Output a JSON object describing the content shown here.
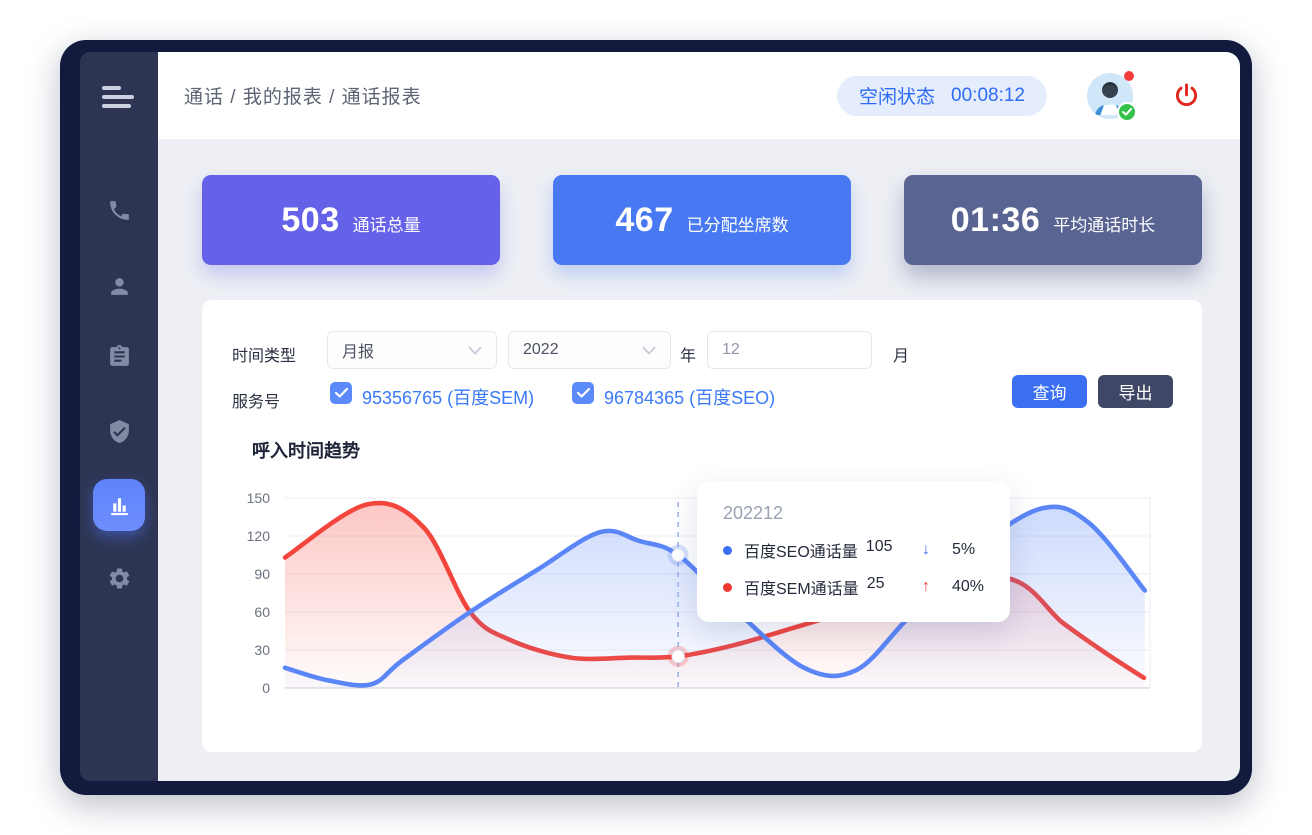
{
  "colors": {
    "frame": "#121b3e",
    "sidebar": "#2e3553",
    "content_bg": "#edeff4",
    "accent_blue": "#3a6ff2",
    "status_pill_bg": "#e5ecfc",
    "status_text": "#2c6cf6",
    "power_red": "#e0281e",
    "checkbox_blue": "#5b8afa",
    "service_link_blue": "#3a79f8",
    "export_dark": "#3f4766",
    "chart_red": "#f4453c",
    "chart_blue": "#5b86f7"
  },
  "topbar": {
    "breadcrumb": "通话 / 我的报表 / 通话报表",
    "status_label": "空闲状态",
    "status_timer": "00:08:12"
  },
  "sidebar": {
    "items": [
      {
        "icon": "phone-icon",
        "active": false
      },
      {
        "icon": "user-icon",
        "active": false
      },
      {
        "icon": "clipboard-icon",
        "active": false
      },
      {
        "icon": "shield-check-icon",
        "active": false
      },
      {
        "icon": "bar-chart-icon",
        "active": true
      },
      {
        "icon": "gear-icon",
        "active": false
      }
    ]
  },
  "cards": [
    {
      "value": "503",
      "label": "通话总量",
      "color": "#6562e9"
    },
    {
      "value": "467",
      "label": "已分配坐席数",
      "color": "#4879f2"
    },
    {
      "value": "01:36",
      "label": "平均通话时长",
      "color": "#5a6492"
    }
  ],
  "filters": {
    "time_type_label": "时间类型",
    "time_type_value": "月报",
    "year_value": "2022",
    "year_suffix": "年",
    "month_value": "12",
    "month_suffix": "月",
    "service_label": "服务号",
    "services": [
      {
        "checked": true,
        "label": "95356765 (百度SEM)"
      },
      {
        "checked": true,
        "label": "96784365 (百度SEO)"
      }
    ],
    "query_button": "查询",
    "export_button": "导出"
  },
  "chart_data": {
    "type": "line",
    "title": "呼入时间趋势",
    "ylabel": "",
    "xlabel": "",
    "ylim": [
      0,
      150
    ],
    "yticks": [
      150,
      120,
      90,
      60,
      30,
      0
    ],
    "grid": true,
    "series": [
      {
        "name": "百度SEM通话量",
        "color": "#f4453c",
        "points": [
          [
            0,
            103
          ],
          [
            0.095,
            145
          ],
          [
            0.16,
            127
          ],
          [
            0.214,
            60
          ],
          [
            0.26,
            38
          ],
          [
            0.33,
            24
          ],
          [
            0.4,
            24
          ],
          [
            0.4545,
            25
          ],
          [
            0.52,
            34
          ],
          [
            0.6,
            50
          ],
          [
            0.7,
            70
          ],
          [
            0.832,
            87
          ],
          [
            0.9,
            51
          ],
          [
            0.95,
            27
          ],
          [
            0.993,
            8
          ]
        ]
      },
      {
        "name": "百度SEO通话量",
        "color": "#5b86f7",
        "points": [
          [
            0,
            16
          ],
          [
            0.05,
            6
          ],
          [
            0.1,
            3
          ],
          [
            0.136,
            22
          ],
          [
            0.214,
            60
          ],
          [
            0.291,
            93
          ],
          [
            0.364,
            123
          ],
          [
            0.41,
            116
          ],
          [
            0.4545,
            105
          ],
          [
            0.52,
            62
          ],
          [
            0.6,
            16
          ],
          [
            0.66,
            14
          ],
          [
            0.72,
            55
          ],
          [
            0.8,
            110
          ],
          [
            0.876,
            142
          ],
          [
            0.93,
            130
          ],
          [
            0.994,
            77
          ]
        ]
      }
    ],
    "hover": {
      "x": 0.4545,
      "x_label": "202212",
      "points": [
        {
          "series": "百度SEO通话量",
          "value": 105
        },
        {
          "series": "百度SEM通话量",
          "value": 25
        }
      ]
    },
    "tooltip": {
      "header": "202212",
      "rows": [
        {
          "label": "百度SEO通话量",
          "value": "105",
          "arrow": "↓",
          "trend": "down",
          "pct": "5%",
          "color": "#3a6ff2"
        },
        {
          "label": "百度SEM通话量",
          "value": "25",
          "arrow": "↑",
          "trend": "up",
          "pct": "40%",
          "color": "#f0392e"
        }
      ]
    }
  }
}
